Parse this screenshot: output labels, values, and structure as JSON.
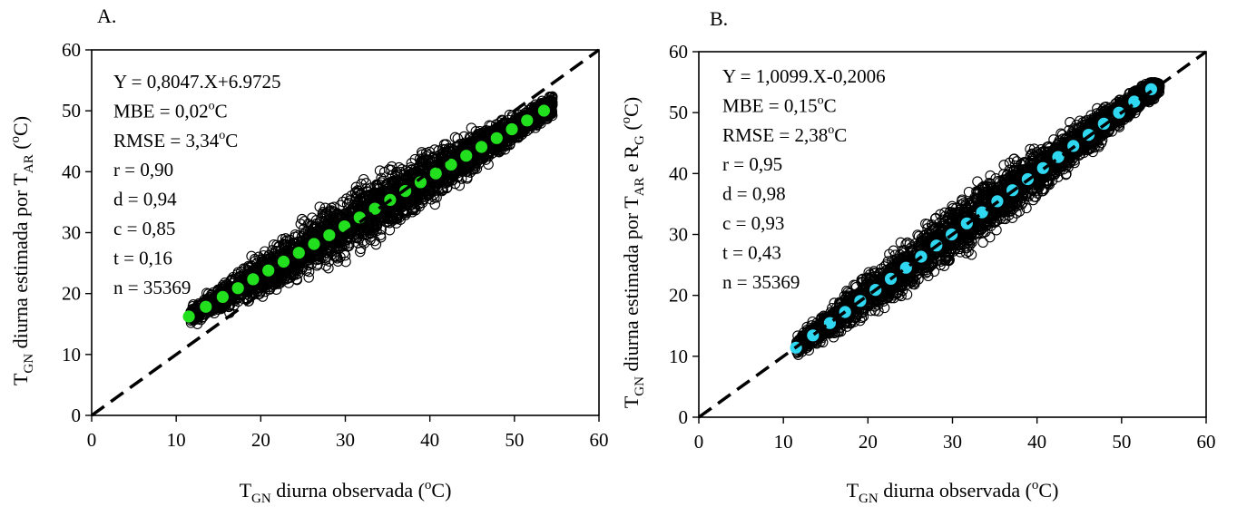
{
  "chart_data": [
    {
      "panel": "A.",
      "type": "scatter",
      "x_axis": {
        "label_main": "T",
        "label_sub": "GN",
        "label_after": " diurna observada (",
        "label_sup": "o",
        "label_end": "C)",
        "range": [
          0,
          60
        ],
        "ticks": [
          0,
          10,
          20,
          30,
          40,
          50,
          60
        ],
        "tick_labels": [
          "0",
          "10",
          "20",
          "30",
          "40",
          "50",
          "60"
        ]
      },
      "y_axis": {
        "label_main": "T",
        "label_sub": "GN",
        "label_after": " diurna estimada por T",
        "label_sub2": "AR",
        "label_open": " (",
        "label_sup": "o",
        "label_end": "C)",
        "range": [
          0,
          60
        ],
        "ticks": [
          0,
          10,
          20,
          30,
          40,
          50,
          60
        ],
        "tick_labels": [
          "0",
          "10",
          "20",
          "30",
          "40",
          "50",
          "60"
        ]
      },
      "stats": [
        {
          "text": "Y = 0,8047.X+6.9725"
        },
        {
          "text": "MBE = 0,02",
          "sup": "o",
          "after": "C"
        },
        {
          "text": "RMSE = 3,34",
          "sup": "o",
          "after": "C"
        },
        {
          "text": "r = 0,90"
        },
        {
          "text": "d = 0,94"
        },
        {
          "text": "c = 0,85"
        },
        {
          "text": "t = 0,16"
        },
        {
          "text": "n = 35369"
        }
      ],
      "scatter_band": {
        "x_min": 11.5,
        "x_max": 54.5,
        "center_slope": 0.8047,
        "center_intercept": 6.9725,
        "edge_color": "#000000"
      },
      "regression": {
        "slope": 0.8047,
        "intercept": 6.9725,
        "x": [
          11.5,
          13.5,
          15.5,
          17.3,
          19.1,
          20.9,
          22.7,
          24.5,
          26.3,
          28.1,
          29.9,
          31.7,
          33.5,
          35.3,
          37.1,
          38.9,
          40.7,
          42.5,
          44.3,
          46.1,
          47.9,
          49.7,
          51.5,
          53.5
        ],
        "color": "#22e01e"
      },
      "reference_line": {
        "from": [
          0,
          0
        ],
        "to": [
          60,
          60
        ],
        "style": "dashed"
      },
      "grid": false
    },
    {
      "panel": "B.",
      "type": "scatter",
      "x_axis": {
        "label_main": "T",
        "label_sub": "GN",
        "label_after": " diurna observada (",
        "label_sup": "o",
        "label_end": "C)",
        "range": [
          0,
          60
        ],
        "ticks": [
          0,
          10,
          20,
          30,
          40,
          50,
          60
        ],
        "tick_labels": [
          "0",
          "10",
          "20",
          "30",
          "40",
          "50",
          "60"
        ]
      },
      "y_axis": {
        "label_main": "T",
        "label_sub": "GN",
        "label_after": " diurna estimada por T",
        "label_sub2": "AR",
        "label_mid": " e R",
        "label_sub3": "G",
        "label_open": " (",
        "label_sup": "o",
        "label_end": "C)",
        "range": [
          0,
          60
        ],
        "ticks": [
          0,
          10,
          20,
          30,
          40,
          50,
          60
        ],
        "tick_labels": [
          "0",
          "10",
          "20",
          "30",
          "40",
          "50",
          "60"
        ]
      },
      "stats": [
        {
          "text": "Y = 1,0099.X-0,2006"
        },
        {
          "text": "MBE = 0,15",
          "sup": "o",
          "after": "C"
        },
        {
          "text": "RMSE = 2,38",
          "sup": "o",
          "after": "C"
        },
        {
          "text": "r = 0,95"
        },
        {
          "text": "d = 0,98"
        },
        {
          "text": "c = 0,93"
        },
        {
          "text": "t = 0,43"
        },
        {
          "text": "n = 35369"
        }
      ],
      "scatter_band": {
        "x_min": 11.5,
        "x_max": 54.5,
        "center_slope": 1.0099,
        "center_intercept": -0.2006,
        "edge_color": "#000000"
      },
      "regression": {
        "slope": 1.0099,
        "intercept": -0.2006,
        "x": [
          11.5,
          13.5,
          15.5,
          17.3,
          19.1,
          20.9,
          22.7,
          24.5,
          26.3,
          28.1,
          29.9,
          31.7,
          33.5,
          35.3,
          37.1,
          38.9,
          40.7,
          42.5,
          44.3,
          46.1,
          47.9,
          49.7,
          51.5,
          53.5
        ],
        "color": "#2fd8f0"
      },
      "reference_line": {
        "from": [
          0,
          0
        ],
        "to": [
          60,
          60
        ],
        "style": "dashed"
      },
      "grid": false
    }
  ]
}
